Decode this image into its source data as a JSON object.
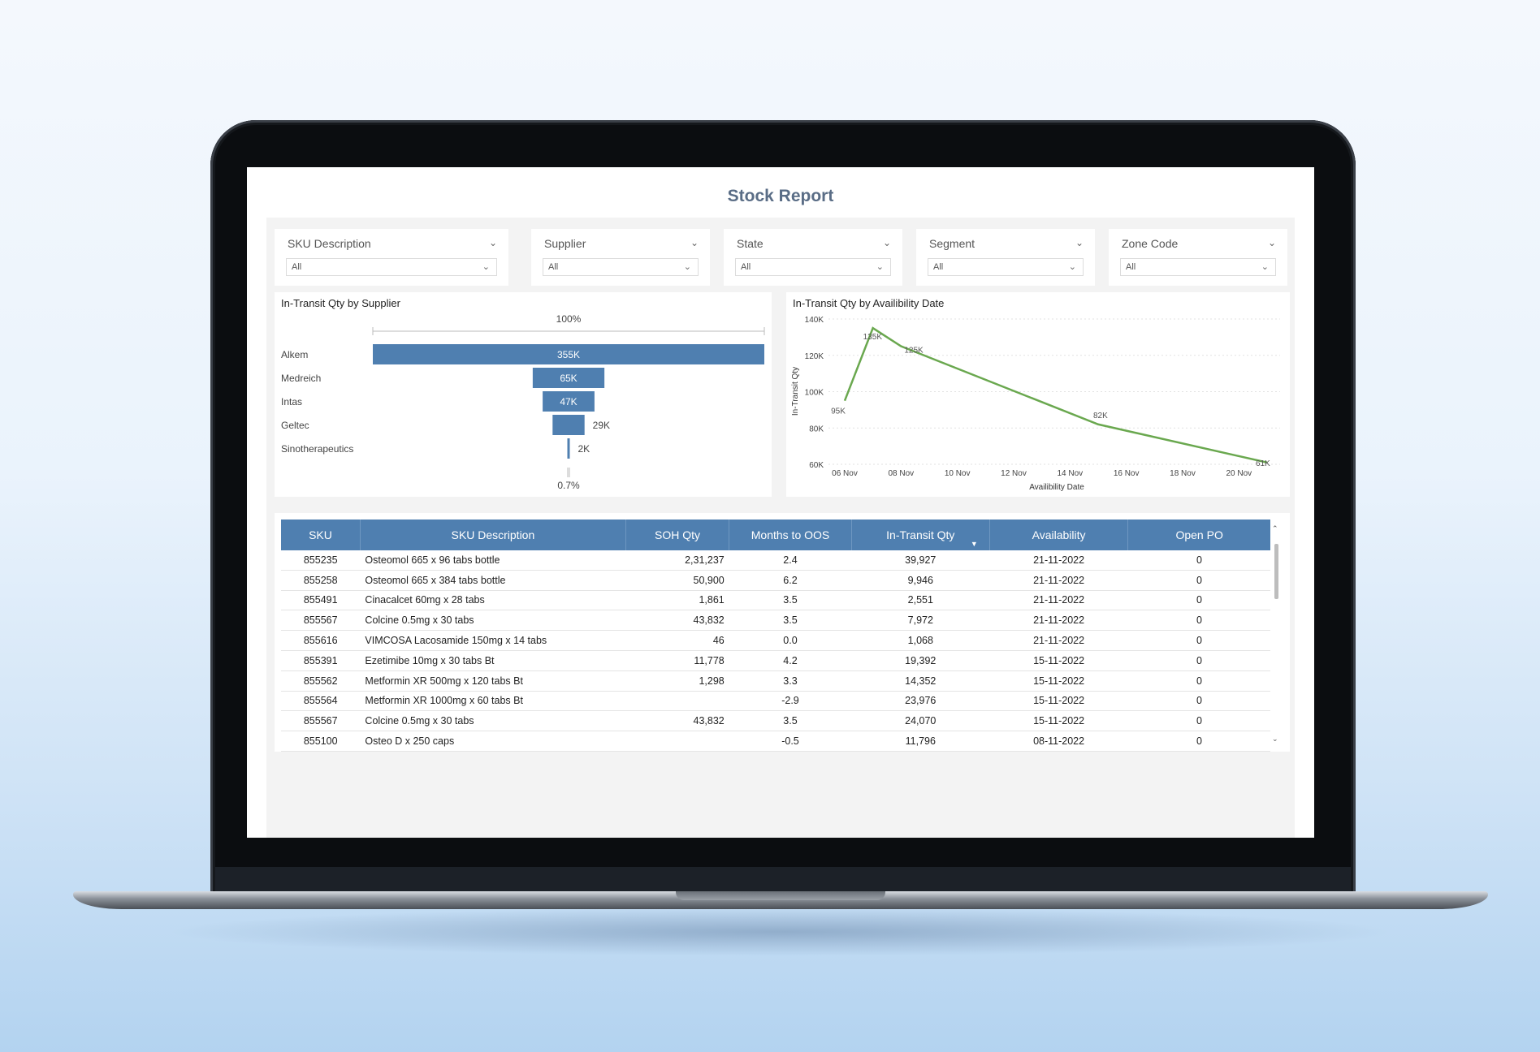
{
  "report": {
    "title": "Stock Report"
  },
  "filters": [
    {
      "label": "SKU Description",
      "value": "All"
    },
    {
      "label": "Supplier",
      "value": "All"
    },
    {
      "label": "State",
      "value": "All"
    },
    {
      "label": "Segment",
      "value": "All"
    },
    {
      "label": "Zone Code",
      "value": "All"
    }
  ],
  "funnel": {
    "title": "In-Transit Qty by Supplier",
    "top_pct": "100%",
    "bottom_pct": "0.7%"
  },
  "line": {
    "title": "In-Transit Qty by Availibility Date",
    "ylabel": "In-Transit Qty",
    "xlabel": "Availibility Date"
  },
  "chart_data": [
    {
      "type": "bar",
      "title": "In-Transit Qty by Supplier",
      "categories": [
        "Alkem",
        "Medreich",
        "Intas",
        "Geltec",
        "Sinotherapeutics"
      ],
      "values": [
        355000,
        65000,
        47000,
        29000,
        2000
      ],
      "labels": [
        "355K",
        "65K",
        "47K",
        "29K",
        "2K"
      ]
    },
    {
      "type": "line",
      "title": "In-Transit Qty by Availibility Date",
      "xlabel": "Availibility Date",
      "ylabel": "In-Transit Qty",
      "x": [
        "2022-11-06",
        "2022-11-07",
        "2022-11-08",
        "2022-11-15",
        "2022-11-21"
      ],
      "y": [
        95000,
        135000,
        125000,
        82000,
        61000
      ],
      "point_labels": [
        "95K",
        "135K",
        "125K",
        "82K",
        "61K"
      ],
      "xticks": [
        "06 Nov",
        "08 Nov",
        "10 Nov",
        "12 Nov",
        "14 Nov",
        "16 Nov",
        "18 Nov",
        "20 Nov"
      ],
      "yticks": [
        "60K",
        "80K",
        "100K",
        "120K",
        "140K"
      ],
      "ylim": [
        60000,
        140000
      ],
      "color": "#6aa84f"
    }
  ],
  "table": {
    "headers": [
      "SKU",
      "SKU Description",
      "SOH Qty",
      "Months to OOS",
      "In-Transit Qty",
      "Availability",
      "Open PO"
    ],
    "rows": [
      [
        "855235",
        "Osteomol 665 x 96 tabs bottle",
        "2,31,237",
        "2.4",
        "39,927",
        "21-11-2022",
        "0"
      ],
      [
        "855258",
        "Osteomol 665 x 384 tabs bottle",
        "50,900",
        "6.2",
        "9,946",
        "21-11-2022",
        "0"
      ],
      [
        "855491",
        "Cinacalcet 60mg x 28 tabs",
        "1,861",
        "3.5",
        "2,551",
        "21-11-2022",
        "0"
      ],
      [
        "855567",
        "Colcine 0.5mg x 30 tabs",
        "43,832",
        "3.5",
        "7,972",
        "21-11-2022",
        "0"
      ],
      [
        "855616",
        "VIMCOSA Lacosamide 150mg x 14 tabs",
        "46",
        "0.0",
        "1,068",
        "21-11-2022",
        "0"
      ],
      [
        "855391",
        "Ezetimibe 10mg x 30 tabs Bt",
        "11,778",
        "4.2",
        "19,392",
        "15-11-2022",
        "0"
      ],
      [
        "855562",
        "Metformin XR 500mg x 120 tabs Bt",
        "1,298",
        "3.3",
        "14,352",
        "15-11-2022",
        "0"
      ],
      [
        "855564",
        "Metformin XR 1000mg x 60 tabs Bt",
        "",
        "-2.9",
        "23,976",
        "15-11-2022",
        "0"
      ],
      [
        "855567",
        "Colcine 0.5mg x 30 tabs",
        "43,832",
        "3.5",
        "24,070",
        "15-11-2022",
        "0"
      ],
      [
        "855100",
        "Osteo D x 250 caps",
        "",
        "-0.5",
        "11,796",
        "08-11-2022",
        "0"
      ]
    ]
  },
  "icons": {
    "chevron": "chevron-down-icon",
    "sort": "sort-desc-icon",
    "scroll_up": "scroll-up-icon",
    "scroll_down": "scroll-down-icon"
  }
}
